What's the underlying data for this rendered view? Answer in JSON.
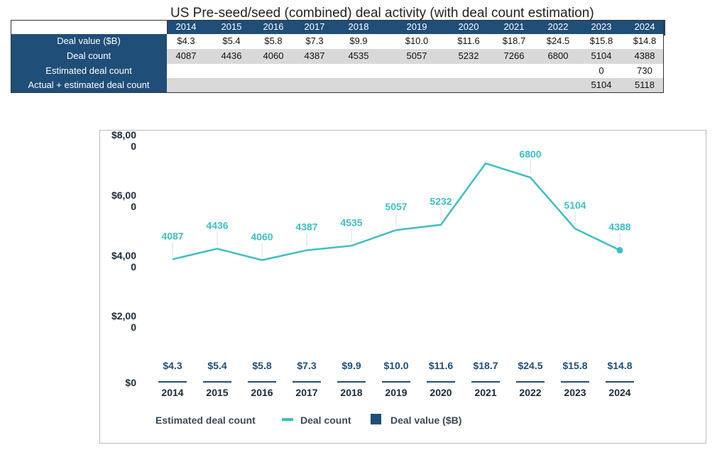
{
  "table": {
    "title": "US Pre-seed/seed (combined) deal activity (with deal count estimation)",
    "years": [
      "2014",
      "2015",
      "2016",
      "2017",
      "2018",
      "2019",
      "2020",
      "2021",
      "2022",
      "2023",
      "2024"
    ],
    "rows": [
      {
        "label": "Deal value ($B)",
        "values": [
          "$4.3",
          "$5.4",
          "$5.8",
          "$7.3",
          "$9.9",
          "$10.0",
          "$11.6",
          "$18.7",
          "$24.5",
          "$15.8",
          "$14.8"
        ]
      },
      {
        "label": "Deal count",
        "values": [
          "4087",
          "4436",
          "4060",
          "4387",
          "4535",
          "5057",
          "5232",
          "7266",
          "6800",
          "5104",
          "4388"
        ]
      },
      {
        "label": "Estimated deal count",
        "values": [
          "",
          "",
          "",
          "",
          "",
          "",
          "",
          "",
          "",
          "0",
          "730"
        ]
      },
      {
        "label": "Actual + estimated deal count",
        "values": [
          "",
          "",
          "",
          "",
          "",
          "",
          "",
          "",
          "",
          "5104",
          "5118"
        ]
      }
    ]
  },
  "chart_data": {
    "type": "bar+line",
    "categories": [
      "2014",
      "2015",
      "2016",
      "2017",
      "2018",
      "2019",
      "2020",
      "2021",
      "2022",
      "2023",
      "2024"
    ],
    "ylim": [
      0,
      8000
    ],
    "yticks": [
      {
        "value": 0,
        "label": "$0"
      },
      {
        "value": 2000,
        "label": "$2,000"
      },
      {
        "value": 4000,
        "label": "$4,000"
      },
      {
        "value": 6000,
        "label": "$6,000"
      },
      {
        "value": 8000,
        "label": "$8,000"
      }
    ],
    "series": [
      {
        "name": "Deal value ($B)",
        "type": "bar",
        "color": "#1f4e79",
        "values": [
          4.3,
          5.4,
          5.8,
          7.3,
          9.9,
          10.0,
          11.6,
          18.7,
          24.5,
          15.8,
          14.8
        ],
        "labels": [
          "$4.3",
          "$5.4",
          "$5.8",
          "$7.3",
          "$9.9",
          "$10.0",
          "$11.6",
          "$18.7",
          "$24.5",
          "$15.8",
          "$14.8"
        ]
      },
      {
        "name": "Deal count",
        "type": "line",
        "color": "#3fbfc4",
        "values": [
          4087,
          4436,
          4060,
          4387,
          4535,
          5057,
          5232,
          7266,
          6800,
          5104,
          4388
        ],
        "labels": [
          "4087",
          "4436",
          "4060",
          "4387",
          "4535",
          "5057",
          "5232",
          "",
          "6800",
          "5104",
          "4388"
        ]
      },
      {
        "name": "Estimated deal count",
        "type": "bar",
        "values": [
          0,
          0,
          0,
          0,
          0,
          0,
          0,
          0,
          0,
          0,
          730
        ]
      }
    ],
    "legend": {
      "position": "bottom",
      "items": [
        "Estimated deal count",
        "Deal count",
        "Deal value ($B)"
      ]
    }
  }
}
